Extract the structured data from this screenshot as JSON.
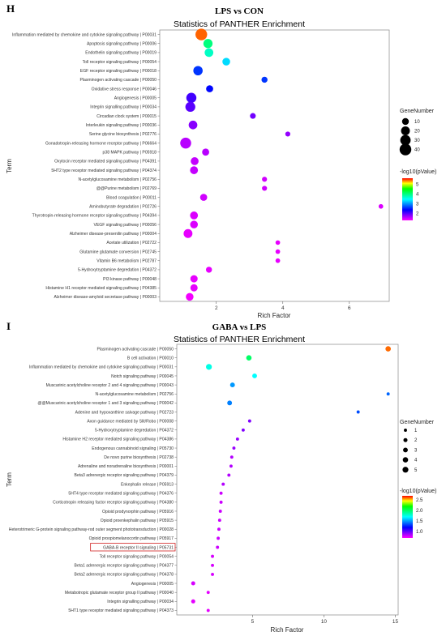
{
  "chart_data": [
    {
      "type": "scatter",
      "panel": "H",
      "figure_title": "LPS vs CON",
      "title": "Statistics of PANTHER Enrichment",
      "xlabel": "Rich Factor",
      "ylabel": "Term",
      "xlim": [
        0.3,
        7.2
      ],
      "xticks": [
        2,
        4,
        6
      ],
      "grid": false,
      "legend_position": "right",
      "size_legend": {
        "title": "GeneNumber",
        "values": [
          10,
          20,
          30,
          40
        ]
      },
      "color_legend": {
        "title": "-log10(pValue)",
        "range": [
          1.3,
          5.6
        ],
        "ticks": [
          2,
          3,
          4,
          5
        ]
      },
      "terms": [
        {
          "label": "Inflammation mediated by chemokine and cytokine signaling pathway | P00031",
          "x": 1.55,
          "genes": 40,
          "p": 5.4
        },
        {
          "label": "Apoptosis signaling pathway | P00006",
          "x": 1.75,
          "genes": 22,
          "p": 4.0
        },
        {
          "label": "Endothelin signaling pathway | P00019",
          "x": 1.78,
          "genes": 19,
          "p": 3.7
        },
        {
          "label": "Toll receptor signaling pathway | P00054",
          "x": 2.3,
          "genes": 14,
          "p": 3.3
        },
        {
          "label": "EGF receptor signaling pathway | P00018",
          "x": 1.45,
          "genes": 23,
          "p": 2.6
        },
        {
          "label": "Plasminogen activating cascade | P00050",
          "x": 3.45,
          "genes": 7,
          "p": 2.6
        },
        {
          "label": "Oxidative stress response | P00046",
          "x": 1.8,
          "genes": 11,
          "p": 2.4
        },
        {
          "label": "Angiogenesis | P00005",
          "x": 1.25,
          "genes": 28,
          "p": 2.1
        },
        {
          "label": "Integrin signalling pathway | P00034",
          "x": 1.22,
          "genes": 27,
          "p": 2.0
        },
        {
          "label": "Circadian clock system | P00015",
          "x": 3.1,
          "genes": 6,
          "p": 1.9
        },
        {
          "label": "Interleukin signaling pathway | P00036",
          "x": 1.3,
          "genes": 19,
          "p": 1.8
        },
        {
          "label": "Serine glycine biosynthesis | P02776",
          "x": 4.15,
          "genes": 4,
          "p": 1.75
        },
        {
          "label": "Gonadotropin-releasing hormone receptor pathway | P06664",
          "x": 1.08,
          "genes": 34,
          "p": 1.6
        },
        {
          "label": "p38 MAPK pathway | P05918",
          "x": 1.68,
          "genes": 11,
          "p": 1.6
        },
        {
          "label": "Oxytocin receptor mediated signaling pathway | P04391",
          "x": 1.35,
          "genes": 15,
          "p": 1.55
        },
        {
          "label": "5HT2 type receptor mediated signaling pathway | P04374",
          "x": 1.33,
          "genes": 15,
          "p": 1.55
        },
        {
          "label": "N-acetylglucosamine metabolism | P02756",
          "x": 3.45,
          "genes": 4,
          "p": 1.5
        },
        {
          "label": "@@Purine metabolism | P02769",
          "x": 3.45,
          "genes": 4,
          "p": 1.5
        },
        {
          "label": "Blood coagulation | P00011",
          "x": 1.62,
          "genes": 11,
          "p": 1.5
        },
        {
          "label": "Aminobutyrate degradation | P02726",
          "x": 6.95,
          "genes": 3,
          "p": 1.45
        },
        {
          "label": "Thyrotropin-releasing hormone receptor signaling pathway | P04394",
          "x": 1.33,
          "genes": 15,
          "p": 1.45
        },
        {
          "label": "VEGF signaling pathway | P00056",
          "x": 1.33,
          "genes": 14,
          "p": 1.45
        },
        {
          "label": "Alzheimer disease-presenilin pathway | P00004",
          "x": 1.15,
          "genes": 20,
          "p": 1.4
        },
        {
          "label": "Acetate utilization | P02722",
          "x": 3.85,
          "genes": 3,
          "p": 1.4
        },
        {
          "label": "Glutamine glutamate conversion | P02745",
          "x": 3.85,
          "genes": 3,
          "p": 1.4
        },
        {
          "label": "Vitamin B6 metabolism | P02787",
          "x": 3.85,
          "genes": 3,
          "p": 1.4
        },
        {
          "label": "5-Hydroxytryptamine degredation | P04372",
          "x": 1.78,
          "genes": 7,
          "p": 1.4
        },
        {
          "label": "PI3 kinase pathway | P00048",
          "x": 1.33,
          "genes": 12,
          "p": 1.4
        },
        {
          "label": "Histamine H1 receptor mediated signaling pathway | P04385",
          "x": 1.33,
          "genes": 12,
          "p": 1.4
        },
        {
          "label": "Alzheimer disease-amyloid secretase pathway | P00003",
          "x": 1.2,
          "genes": 14,
          "p": 1.35
        }
      ]
    },
    {
      "type": "scatter",
      "panel": "I",
      "figure_title": "GABA vs LPS",
      "title": "Statistics of PANTHER Enrichment",
      "xlabel": "Rich Factor",
      "ylabel": "Term",
      "xlim": [
        -0.3,
        15.2
      ],
      "xticks": [
        5,
        10,
        15
      ],
      "grid": false,
      "legend_position": "right",
      "size_legend": {
        "title": "GeneNumber",
        "values": [
          1,
          2,
          3,
          4,
          5
        ]
      },
      "color_legend": {
        "title": "-log10(pValue)",
        "range": [
          0.7,
          2.7
        ],
        "ticks": [
          1.0,
          1.5,
          2.0,
          2.5
        ]
      },
      "highlighted_term": "GABA-B receptor II signaling | P05731",
      "terms": [
        {
          "label": "Plasminogen activating cascade | P00050",
          "x": 14.5,
          "genes": 4,
          "p": 2.6
        },
        {
          "label": "B cell activation | P00010",
          "x": 4.75,
          "genes": 4,
          "p": 2.0
        },
        {
          "label": "Inflammation mediated by chemokine and cytokine signaling pathway | P00031",
          "x": 1.95,
          "genes": 5,
          "p": 1.75
        },
        {
          "label": "Notch signaling pathway | P00045",
          "x": 5.15,
          "genes": 3,
          "p": 1.7
        },
        {
          "label": "Muscarinic acetylcholine receptor 2 and 4 signaling pathway | P00043",
          "x": 3.6,
          "genes": 3,
          "p": 1.5
        },
        {
          "label": "N-acetylglucosamine metabolism | P02756",
          "x": 14.5,
          "genes": 1,
          "p": 1.4
        },
        {
          "label": "@@Muscarinic acetylcholine receptor 1 and 3 signaling pathway | P00042",
          "x": 3.4,
          "genes": 3,
          "p": 1.45
        },
        {
          "label": "Adenine and hypoxanthine salvage pathway | P02723",
          "x": 12.4,
          "genes": 1,
          "p": 1.35
        },
        {
          "label": "Axon guidance mediated by Slit/Robo | P00008",
          "x": 4.8,
          "genes": 1,
          "p": 0.95
        },
        {
          "label": "5-Hydroxytryptamine degredation | P04372",
          "x": 4.35,
          "genes": 1,
          "p": 0.95
        },
        {
          "label": "Histamine H2 receptor mediated signaling pathway | P04386",
          "x": 3.95,
          "genes": 1,
          "p": 0.9
        },
        {
          "label": "Endogenous cannabinoid signaling | P05730",
          "x": 3.7,
          "genes": 1,
          "p": 0.9
        },
        {
          "label": "De novo purine biosynthesis | P02738",
          "x": 3.55,
          "genes": 1,
          "p": 0.85
        },
        {
          "label": "Adrenaline and noradrenaline biosynthesis | P00001",
          "x": 3.5,
          "genes": 1,
          "p": 0.85
        },
        {
          "label": "Beta3 adrenergic receptor signaling pathway | P04379",
          "x": 3.35,
          "genes": 1,
          "p": 0.85
        },
        {
          "label": "Enkephalin release | P05913",
          "x": 2.95,
          "genes": 1,
          "p": 0.85
        },
        {
          "label": "5HT4 type receptor mediated signaling pathway | P04376",
          "x": 2.8,
          "genes": 1,
          "p": 0.8
        },
        {
          "label": "Corticotropin releasing factor receptor signaling pathway | P04380",
          "x": 2.8,
          "genes": 1,
          "p": 0.8
        },
        {
          "label": "Opioid prodynorphin pathway | P05916",
          "x": 2.75,
          "genes": 1,
          "p": 0.8
        },
        {
          "label": "Opioid proenkephalin pathway | P05915",
          "x": 2.7,
          "genes": 1,
          "p": 0.8
        },
        {
          "label": "Heterotrimeric G-protein signaling pathway-rod outer segment phototransduction | P00028",
          "x": 2.65,
          "genes": 1,
          "p": 0.8
        },
        {
          "label": "Opioid proopiomelanocortin pathway | P05917",
          "x": 2.6,
          "genes": 1,
          "p": 0.8
        },
        {
          "label": "GABA-B receptor II signaling | P05731",
          "x": 2.55,
          "genes": 1,
          "p": 0.8
        },
        {
          "label": "Toll receptor signaling pathway | P00054",
          "x": 2.2,
          "genes": 1,
          "p": 0.78
        },
        {
          "label": "Beta1 adrenergic receptor signaling pathway | P04377",
          "x": 2.2,
          "genes": 1,
          "p": 0.78
        },
        {
          "label": "Beta2 adrenergic receptor signaling pathway | P04378",
          "x": 2.2,
          "genes": 1,
          "p": 0.78
        },
        {
          "label": "Angiogenesis | P00005",
          "x": 0.85,
          "genes": 2,
          "p": 0.78
        },
        {
          "label": "Metabotropic glutamate receptor group II pathway | P00040",
          "x": 1.9,
          "genes": 1,
          "p": 0.75
        },
        {
          "label": "Integrin signalling pathway | P00034",
          "x": 0.85,
          "genes": 2,
          "p": 0.75
        },
        {
          "label": "5HT1 type receptor mediated signaling pathway | P04373",
          "x": 1.9,
          "genes": 1,
          "p": 0.75
        }
      ]
    }
  ]
}
